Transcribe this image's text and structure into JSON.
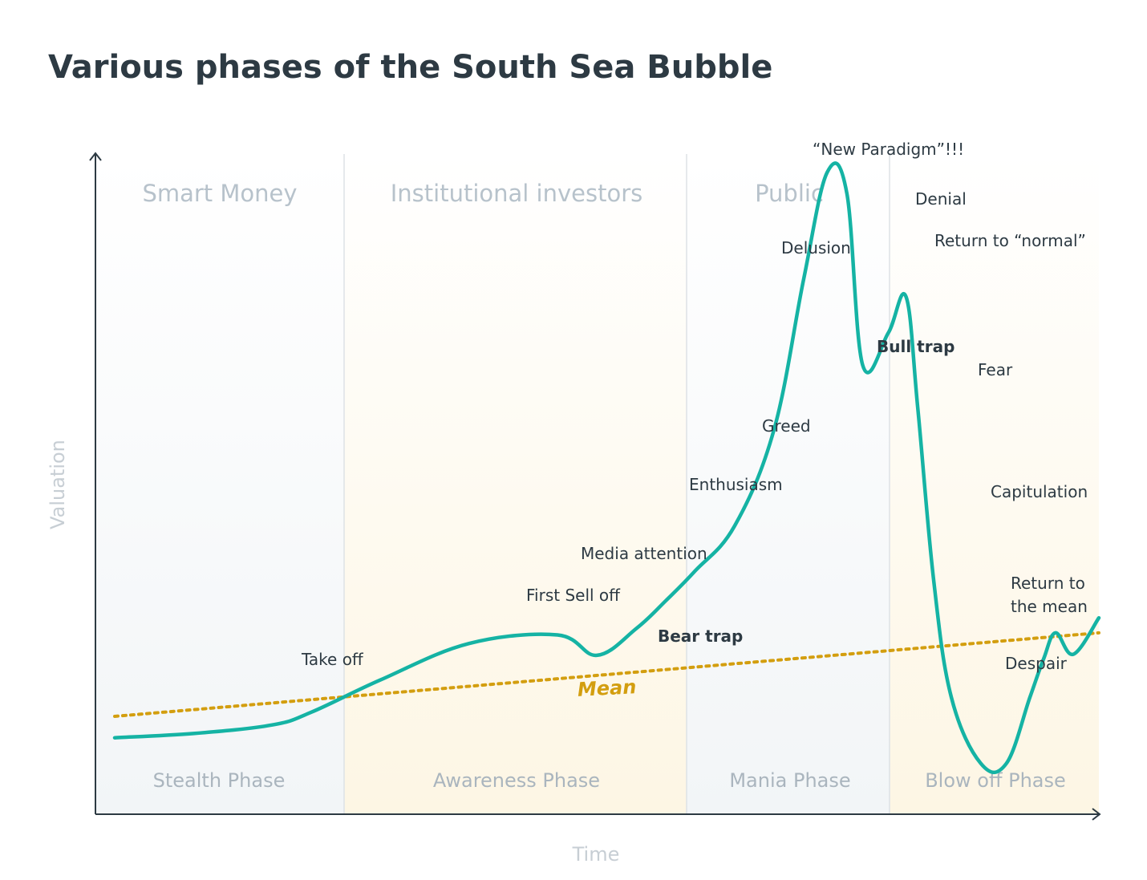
{
  "chart_data": {
    "type": "line",
    "title": "Various phases of the South Sea Bubble",
    "xlabel": "Time",
    "ylabel": "Valuation",
    "investor_groups": [
      "Smart Money",
      "Institutional investors",
      "Public"
    ],
    "phases": [
      "Stealth Phase",
      "Awareness Phase",
      "Mania Phase",
      "Blow off Phase"
    ],
    "series": [
      {
        "name": "",
        "color": "#15b3a4",
        "x": [
          0,
          4,
          8,
          10,
          13.5,
          18,
          22.5,
          24.5,
          26.5,
          28,
          29.5,
          31.5,
          33.5,
          35,
          36.2,
          37.2,
          38,
          39.3,
          40.2,
          40.8,
          41.6,
          42.5,
          44,
          45.3,
          46.5,
          47.2,
          47.8,
          48.7,
          50
        ],
        "y": [
          0.6,
          0.8,
          1.2,
          1.8,
          3.3,
          5.0,
          5.4,
          4.45,
          5.7,
          7.0,
          8.4,
          10.5,
          15.0,
          22.0,
          27.0,
          26.0,
          18.0,
          19.5,
          21.2,
          16.0,
          8.0,
          2.5,
          -0.6,
          -0.6,
          2.5,
          4.3,
          5.5,
          4.5,
          6.2
        ]
      },
      {
        "name": "Mean",
        "color": "#d39e0f",
        "style": "dotted",
        "x": [
          0,
          50
        ],
        "y": [
          1.6,
          5.5
        ]
      }
    ],
    "annotations": [
      {
        "text": "Take off",
        "bold": false
      },
      {
        "text": "First Sell off",
        "bold": false
      },
      {
        "text": "Bear trap",
        "bold": true
      },
      {
        "text": "Media attention",
        "bold": false
      },
      {
        "text": "Enthusiasm",
        "bold": false
      },
      {
        "text": "Greed",
        "bold": false
      },
      {
        "text": "Delusion",
        "bold": false
      },
      {
        "text": "“New Paradigm”!!!",
        "bold": false
      },
      {
        "text": "Denial",
        "bold": false
      },
      {
        "text": "Return to “normal”",
        "bold": false
      },
      {
        "text": "Bull trap",
        "bold": true
      },
      {
        "text": "Fear",
        "bold": false
      },
      {
        "text": "Capitulation",
        "bold": false
      },
      {
        "text": "Return to",
        "bold": false
      },
      {
        "text": "the mean",
        "bold": false
      },
      {
        "text": "Despair",
        "bold": false
      }
    ],
    "colors": {
      "curve": "#15b3a4",
      "mean": "#d39e0f",
      "band_cool": "#f4f6f8",
      "band_warm": "#fdf8ea",
      "axis": "#2d3a43"
    }
  }
}
